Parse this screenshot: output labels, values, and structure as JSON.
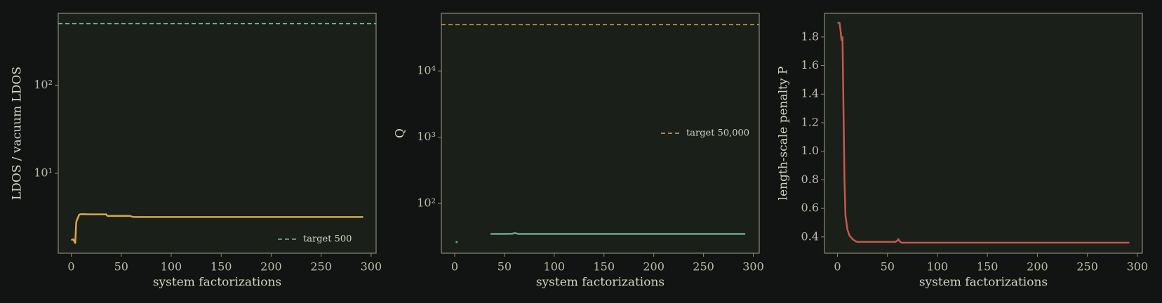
{
  "chart_data": [
    {
      "type": "line",
      "xlabel": "system factorizations",
      "ylabel": "LDOS / vacuum LDOS",
      "yscale": "log",
      "xlim": [
        -13,
        305
      ],
      "ylim": [
        1.24,
        653
      ],
      "xticks": [
        0,
        50,
        100,
        150,
        200,
        250,
        300
      ],
      "yticks": [
        {
          "value": 10,
          "label": "10¹"
        },
        {
          "value": 100,
          "label": "10²"
        }
      ],
      "x": [
        0,
        2,
        3,
        4,
        5,
        6,
        8,
        10,
        20,
        35,
        36,
        37,
        59,
        60,
        62,
        64,
        100,
        200,
        292
      ],
      "series": [
        {
          "color": "#d9a84a",
          "values": [
            1.75,
            1.78,
            1.7,
            1.62,
            2.8,
            3.0,
            3.4,
            3.44,
            3.42,
            3.42,
            3.3,
            3.28,
            3.28,
            3.24,
            3.2,
            3.19,
            3.19,
            3.19,
            3.19
          ]
        }
      ],
      "hlines": [
        {
          "name": "target 500",
          "value": 500,
          "color": "#7fb3a0"
        }
      ],
      "legend": "lower right"
    },
    {
      "type": "line",
      "xlabel": "system factorizations",
      "ylabel": "Q",
      "yscale": "log",
      "xlim": [
        -13.4,
        306
      ],
      "ylim": [
        17.8,
        74000
      ],
      "xticks": [
        0,
        50,
        100,
        150,
        200,
        250,
        300
      ],
      "yticks": [
        {
          "value": 100,
          "label": "10²"
        },
        {
          "value": 1000,
          "label": "10³"
        },
        {
          "value": 10000,
          "label": "10⁴"
        }
      ],
      "x": [
        1,
        3,
        20,
        36,
        50,
        58,
        60,
        62,
        64,
        100,
        200,
        292
      ],
      "series": [
        {
          "color": "#6aa98c",
          "values": [
            26.2,
            26.2,
            null,
            34.8,
            34.8,
            35.0,
            35.8,
            35.4,
            34.8,
            34.8,
            34.8,
            34.8
          ]
        }
      ],
      "hlines": [
        {
          "name": "target 50,000",
          "value": 50000,
          "color": "#d9a84a"
        }
      ],
      "legend": "center right"
    },
    {
      "type": "line",
      "xlabel": "system factorizations",
      "ylabel": "length-scale penalty P",
      "yscale": "linear",
      "xlim": [
        -13,
        305
      ],
      "ylim": [
        0.286,
        1.966
      ],
      "xticks": [
        0,
        50,
        100,
        150,
        200,
        250,
        300
      ],
      "yticks": [
        0.4,
        0.6,
        0.8,
        {
          "value": 1,
          "label": "1.0"
        },
        1.2,
        1.4,
        1.6,
        1.8
      ],
      "x": [
        0,
        2,
        3,
        4,
        5,
        6,
        7,
        8,
        10,
        12,
        15,
        18,
        20,
        30,
        58,
        60,
        61,
        62,
        64,
        100,
        200,
        292
      ],
      "series": [
        {
          "color": "#c8584a",
          "values": [
            1.9,
            1.9,
            1.85,
            1.78,
            1.8,
            1.3,
            0.8,
            0.55,
            0.45,
            0.41,
            0.385,
            0.37,
            0.365,
            0.365,
            0.365,
            0.375,
            0.385,
            0.37,
            0.36,
            0.36,
            0.36,
            0.36
          ]
        }
      ]
    }
  ]
}
